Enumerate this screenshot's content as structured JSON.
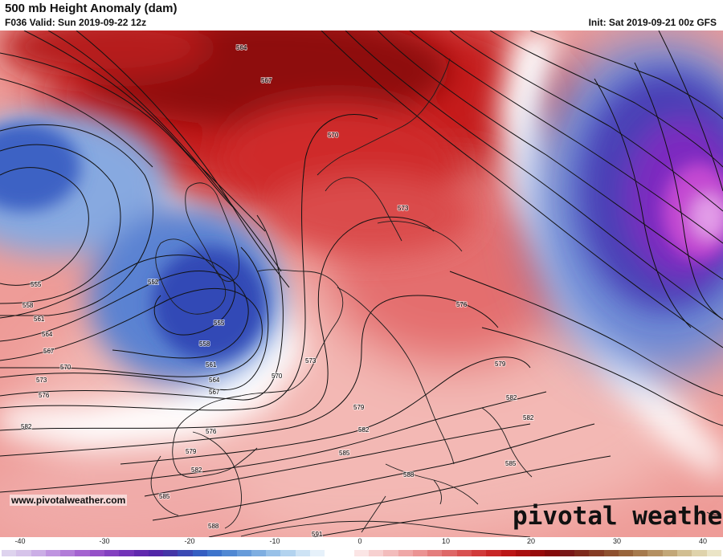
{
  "header": {
    "title": "500 mb Height Anomaly (dam)",
    "valid": "F036 Valid: Sun 2019-09-22 12z",
    "init": "Init: Sat 2019-09-21 00z GFS"
  },
  "footer": {
    "website": "www.pivotalweather.com",
    "brand": "pivotal weather"
  },
  "colorbar": {
    "ticks": [
      "-40",
      "-30",
      "-20",
      "-10",
      "0",
      "10",
      "20",
      "30",
      "40"
    ],
    "range": [
      -40,
      40
    ],
    "colors": [
      "#ded3ee",
      "#d6c3ea",
      "#cbaee6",
      "#bf94e0",
      "#b27cd8",
      "#a463d0",
      "#9550c8",
      "#8340c0",
      "#7233b8",
      "#6029ae",
      "#5126a8",
      "#4335a6",
      "#3a49b4",
      "#345ec2",
      "#3d74cc",
      "#5088d3",
      "#669bda",
      "#7eaee1",
      "#98c1e8",
      "#b2d3ef",
      "#cde3f5",
      "#e6f1fa",
      "#ffffff",
      "#ffffff",
      "#fbe5e5",
      "#f7d0d0",
      "#f3bcbc",
      "#efa7a7",
      "#eb9393",
      "#e47d7d",
      "#de6767",
      "#d85050",
      "#d13a3a",
      "#c82626",
      "#bb1717",
      "#a90f0f",
      "#960b0b",
      "#830a0a",
      "#781818",
      "#7d2a1c",
      "#853c24",
      "#8e502e",
      "#98643a",
      "#a67a4c",
      "#b49061",
      "#c2a777",
      "#d1be91",
      "#dfd3ab",
      "#ebe5c7"
    ]
  },
  "contours": [
    {
      "value": "552",
      "text": "552"
    },
    {
      "value": "555",
      "text": "555"
    },
    {
      "value": "555",
      "text": "555"
    },
    {
      "value": "558",
      "text": "558"
    },
    {
      "value": "558",
      "text": "558"
    },
    {
      "value": "561",
      "text": "561"
    },
    {
      "value": "561",
      "text": "561"
    },
    {
      "value": "564",
      "text": "564"
    },
    {
      "value": "564",
      "text": "564"
    },
    {
      "value": "564",
      "text": "564"
    },
    {
      "value": "567",
      "text": "567"
    },
    {
      "value": "567",
      "text": "567"
    },
    {
      "value": "567",
      "text": "567"
    },
    {
      "value": "570",
      "text": "570"
    },
    {
      "value": "570",
      "text": "570"
    },
    {
      "value": "570",
      "text": "570"
    },
    {
      "value": "573",
      "text": "573"
    },
    {
      "value": "573",
      "text": "573"
    },
    {
      "value": "573",
      "text": "573"
    },
    {
      "value": "576",
      "text": "576"
    },
    {
      "value": "576",
      "text": "576"
    },
    {
      "value": "576",
      "text": "576"
    },
    {
      "value": "579",
      "text": "579"
    },
    {
      "value": "579",
      "text": "579"
    },
    {
      "value": "579",
      "text": "579"
    },
    {
      "value": "582",
      "text": "582"
    },
    {
      "value": "582",
      "text": "582"
    },
    {
      "value": "582",
      "text": "582"
    },
    {
      "value": "582",
      "text": "582"
    },
    {
      "value": "582",
      "text": "582"
    },
    {
      "value": "585",
      "text": "585"
    },
    {
      "value": "585",
      "text": "585"
    },
    {
      "value": "585",
      "text": "585"
    },
    {
      "value": "588",
      "text": "588"
    },
    {
      "value": "588",
      "text": "588"
    },
    {
      "value": "591",
      "text": "591"
    }
  ]
}
